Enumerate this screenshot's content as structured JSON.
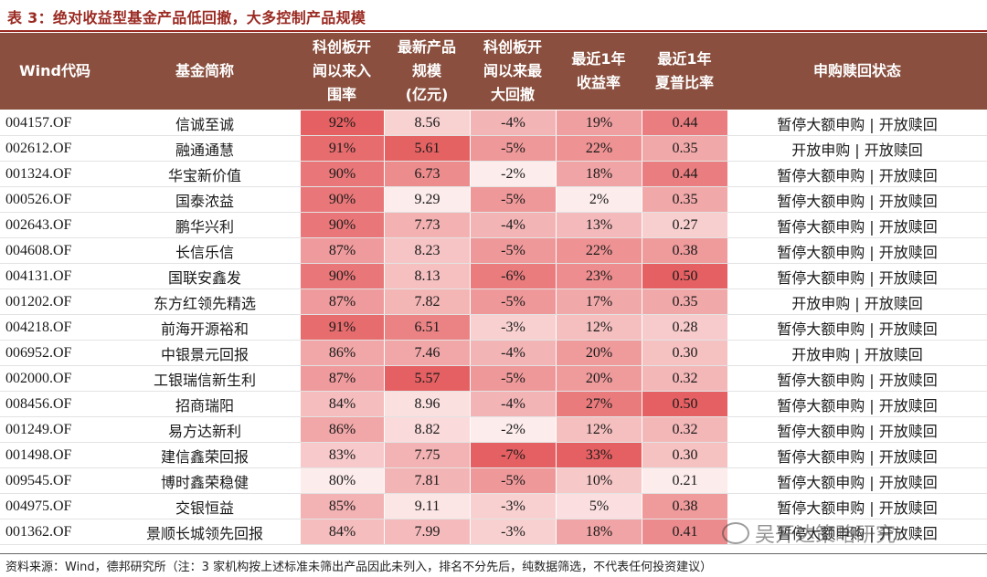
{
  "title": "表 3：绝对收益型基金产品低回撤，大多控制产品规模",
  "headers": [
    "Wind代码",
    "基金简称",
    "科创板开\n闻以来入\n围率",
    "最新产品\n规模\n(亿元)",
    "科创板开\n闻以来最\n大回撤",
    "最近1年\n收益率",
    "最近1年\n夏普比率",
    "申购赎回状态"
  ],
  "rows": [
    {
      "code": "004157.OF",
      "name": "信诚至诚",
      "rate": "92%",
      "scale": "8.56",
      "dd": "-4%",
      "ret": "19%",
      "sharpe": "0.44",
      "status": "暂停大额申购 | 开放赎回"
    },
    {
      "code": "002612.OF",
      "name": "融通通慧",
      "rate": "91%",
      "scale": "5.61",
      "dd": "-5%",
      "ret": "22%",
      "sharpe": "0.35",
      "status": "开放申购 | 开放赎回"
    },
    {
      "code": "001324.OF",
      "name": "华宝新价值",
      "rate": "90%",
      "scale": "6.73",
      "dd": "-2%",
      "ret": "18%",
      "sharpe": "0.44",
      "status": "暂停大额申购 | 开放赎回"
    },
    {
      "code": "000526.OF",
      "name": "国泰浓益",
      "rate": "90%",
      "scale": "9.29",
      "dd": "-5%",
      "ret": "2%",
      "sharpe": "0.35",
      "status": "暂停大额申购 | 开放赎回"
    },
    {
      "code": "002643.OF",
      "name": "鹏华兴利",
      "rate": "90%",
      "scale": "7.73",
      "dd": "-4%",
      "ret": "13%",
      "sharpe": "0.27",
      "status": "暂停大额申购 | 开放赎回"
    },
    {
      "code": "004608.OF",
      "name": "长信乐信",
      "rate": "87%",
      "scale": "8.23",
      "dd": "-5%",
      "ret": "22%",
      "sharpe": "0.38",
      "status": "暂停大额申购 | 开放赎回"
    },
    {
      "code": "004131.OF",
      "name": "国联安鑫发",
      "rate": "90%",
      "scale": "8.13",
      "dd": "-6%",
      "ret": "23%",
      "sharpe": "0.50",
      "status": "暂停大额申购 | 开放赎回"
    },
    {
      "code": "001202.OF",
      "name": "东方红领先精选",
      "rate": "87%",
      "scale": "7.82",
      "dd": "-5%",
      "ret": "17%",
      "sharpe": "0.35",
      "status": "开放申购 | 开放赎回"
    },
    {
      "code": "004218.OF",
      "name": "前海开源裕和",
      "rate": "91%",
      "scale": "6.51",
      "dd": "-3%",
      "ret": "12%",
      "sharpe": "0.28",
      "status": "暂停大额申购 | 开放赎回"
    },
    {
      "code": "006952.OF",
      "name": "中银景元回报",
      "rate": "86%",
      "scale": "7.46",
      "dd": "-4%",
      "ret": "20%",
      "sharpe": "0.30",
      "status": "开放申购 | 开放赎回"
    },
    {
      "code": "002000.OF",
      "name": "工银瑞信新生利",
      "rate": "87%",
      "scale": "5.57",
      "dd": "-5%",
      "ret": "20%",
      "sharpe": "0.32",
      "status": "暂停大额申购 | 开放赎回"
    },
    {
      "code": "008456.OF",
      "name": "招商瑞阳",
      "rate": "84%",
      "scale": "8.96",
      "dd": "-4%",
      "ret": "27%",
      "sharpe": "0.50",
      "status": "暂停大额申购 | 开放赎回"
    },
    {
      "code": "001249.OF",
      "name": "易方达新利",
      "rate": "86%",
      "scale": "8.82",
      "dd": "-2%",
      "ret": "12%",
      "sharpe": "0.32",
      "status": "暂停大额申购 | 开放赎回"
    },
    {
      "code": "001498.OF",
      "name": "建信鑫荣回报",
      "rate": "83%",
      "scale": "7.75",
      "dd": "-7%",
      "ret": "33%",
      "sharpe": "0.30",
      "status": "暂停大额申购 | 开放赎回"
    },
    {
      "code": "009545.OF",
      "name": "博时鑫荣稳健",
      "rate": "80%",
      "scale": "7.81",
      "dd": "-5%",
      "ret": "10%",
      "sharpe": "0.21",
      "status": "暂停大额申购 | 开放赎回"
    },
    {
      "code": "004975.OF",
      "name": "交银恒益",
      "rate": "85%",
      "scale": "9.11",
      "dd": "-3%",
      "ret": "5%",
      "sharpe": "0.38",
      "status": "暂停大额申购 | 开放赎回"
    },
    {
      "code": "001362.OF",
      "name": "景顺长城领先回报",
      "rate": "84%",
      "scale": "7.99",
      "dd": "-3%",
      "ret": "18%",
      "sharpe": "0.41",
      "status": "暂停大额申购 | 开放赎回"
    }
  ],
  "note": "资料来源：Wind，德邦研究所（注：3 家机构按上述标准未筛出产品因此未列入，排名不分先后，纯数据筛选，不代表任何投资建议）",
  "watermark": "吴开达策略研究",
  "colors": {
    "header_bg": "#8a4f3e",
    "title": "#9a2a22",
    "heat_high": "#e45a5a",
    "heat_low": "#ffffff"
  }
}
